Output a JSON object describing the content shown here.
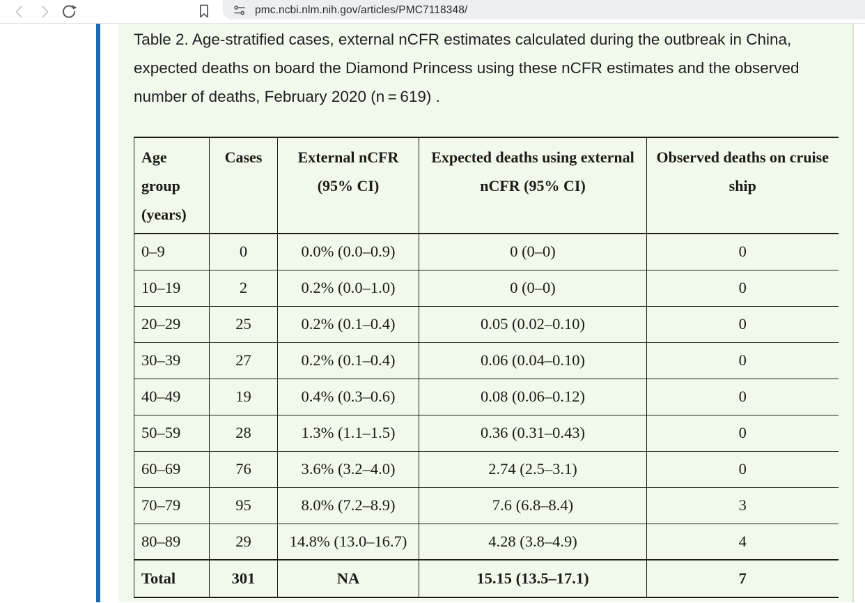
{
  "browser": {
    "url": "pmc.ncbi.nlm.nih.gov/articles/PMC7118348/",
    "icons": {
      "back": "back-arrow-icon",
      "forward": "forward-arrow-icon",
      "reload": "reload-icon",
      "bookmark": "bookmark-icon",
      "site_settings": "site-settings-sliders-icon"
    }
  },
  "article": {
    "caption": "Table 2. Age-stratified cases, external nCFR estimates calculated during the outbreak in China, expected deaths on board the Diamond Princess using these nCFR estimates and the observed number of deaths, February 2020 (n = 619) ."
  },
  "table": {
    "headers": [
      "Age group (years)",
      "Cases",
      "External nCFR (95% CI)",
      "Expected deaths using external nCFR (95% CI)",
      "Observed deaths on cruise ship"
    ],
    "rows": [
      [
        "0–9",
        "0",
        "0.0% (0.0–0.9)",
        "0 (0–0)",
        "0"
      ],
      [
        "10–19",
        "2",
        "0.2% (0.0–1.0)",
        "0 (0–0)",
        "0"
      ],
      [
        "20–29",
        "25",
        "0.2% (0.1–0.4)",
        "0.05 (0.02–0.10)",
        "0"
      ],
      [
        "30–39",
        "27",
        "0.2% (0.1–0.4)",
        "0.06 (0.04–0.10)",
        "0"
      ],
      [
        "40–49",
        "19",
        "0.4% (0.3–0.6)",
        "0.08 (0.06–0.12)",
        "0"
      ],
      [
        "50–59",
        "28",
        "1.3% (1.1–1.5)",
        "0.36 (0.31–0.43)",
        "0"
      ],
      [
        "60–69",
        "76",
        "3.6% (3.2–4.0)",
        "2.74 (2.5–3.1)",
        "0"
      ],
      [
        "70–79",
        "95",
        "8.0% (7.2–8.9)",
        "7.6 (6.8–8.4)",
        "3"
      ],
      [
        "80–89",
        "29",
        "14.8% (13.0–16.7)",
        "4.28 (3.8–4.9)",
        "4"
      ]
    ],
    "total_row": [
      "Total",
      "301",
      "NA",
      "15.15 (13.5–17.1)",
      "7"
    ]
  },
  "colors": {
    "accent_bar_blue": "#1a6cb2",
    "panel_green": "#f0f9eb",
    "table_border": "#1c1b16",
    "addressbar_gray": "#eceef2"
  }
}
